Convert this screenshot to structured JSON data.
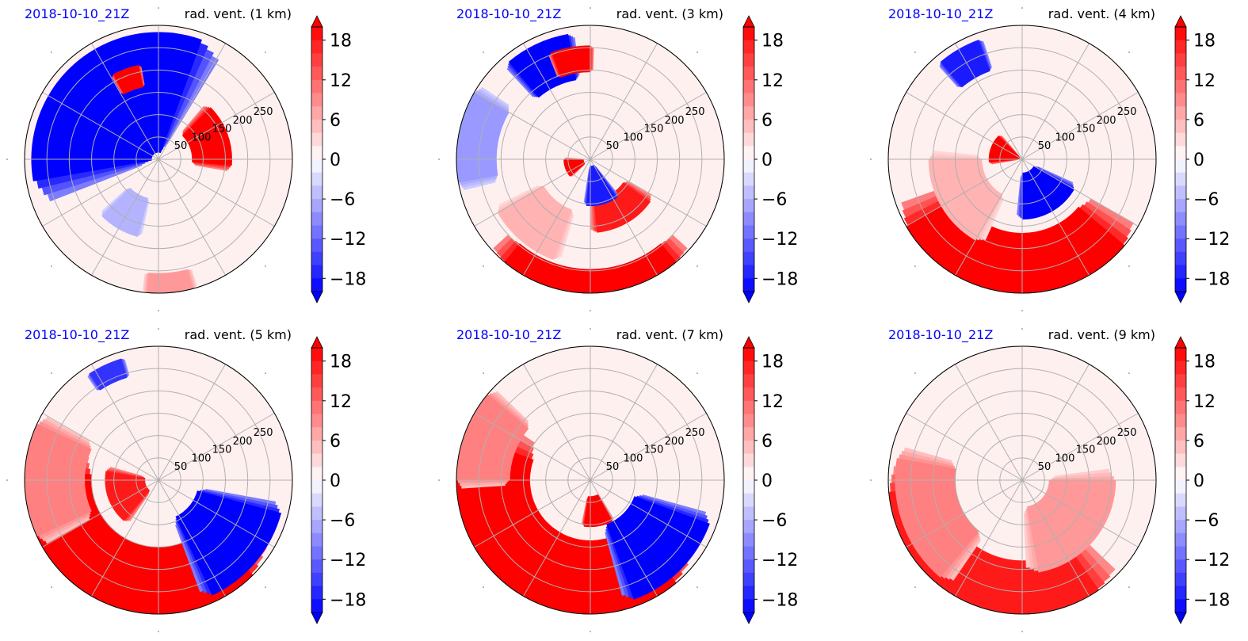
{
  "figure": {
    "panel_count": 6
  },
  "chart_data": [
    {
      "type": "heatmap",
      "projection": "polar",
      "date_label": "2018-10-10_21Z",
      "title": "rad. vent. (1 km)",
      "radial_ticks": [
        "50",
        "100",
        "150",
        "200",
        "250"
      ],
      "colorbar": {
        "ticks": [
          "18",
          "12",
          "6",
          "0",
          "−6",
          "−12",
          "−18"
        ],
        "range": [
          -20,
          20
        ],
        "extend": "both"
      },
      "grid": true,
      "features": [
        {
          "sign": "negative",
          "az": 130,
          "spread": 60,
          "r1": 0.05,
          "r2": 0.95,
          "intensity": 1.0
        },
        {
          "sign": "positive",
          "az": 20,
          "spread": 25,
          "r1": 0.25,
          "r2": 0.55,
          "intensity": 1.0
        },
        {
          "sign": "positive",
          "az": 110,
          "spread": 8,
          "r1": 0.55,
          "r2": 0.72,
          "intensity": 1.0
        },
        {
          "sign": "positive",
          "az": 275,
          "spread": 10,
          "r1": 0.85,
          "r2": 1.0,
          "intensity": 0.4
        },
        {
          "sign": "negative",
          "az": 240,
          "spread": 15,
          "r1": 0.3,
          "r2": 0.6,
          "intensity": 0.3
        }
      ]
    },
    {
      "type": "heatmap",
      "projection": "polar",
      "date_label": "2018-10-10_21Z",
      "title": "rad. vent. (3 km)",
      "radial_ticks": [
        "50",
        "100",
        "150",
        "200",
        "250"
      ],
      "colorbar": {
        "ticks": [
          "18",
          "12",
          "6",
          "0",
          "−6",
          "−12",
          "−18"
        ],
        "range": [
          -20,
          20
        ],
        "extend": "both"
      },
      "grid": true,
      "features": [
        {
          "sign": "positive",
          "az": 270,
          "spread": 40,
          "r1": 0.82,
          "r2": 1.0,
          "intensity": 1.0
        },
        {
          "sign": "positive",
          "az": 300,
          "spread": 25,
          "r1": 0.3,
          "r2": 0.55,
          "intensity": 0.9
        },
        {
          "sign": "negative",
          "az": 285,
          "spread": 20,
          "r1": 0.05,
          "r2": 0.35,
          "intensity": 0.9
        },
        {
          "sign": "positive",
          "az": 200,
          "spread": 20,
          "r1": 0.05,
          "r2": 0.2,
          "intensity": 1.0
        },
        {
          "sign": "negative",
          "az": 115,
          "spread": 15,
          "r1": 0.6,
          "r2": 0.95,
          "intensity": 1.0
        },
        {
          "sign": "positive",
          "az": 100,
          "spread": 10,
          "r1": 0.65,
          "r2": 0.85,
          "intensity": 1.0
        },
        {
          "sign": "negative",
          "az": 170,
          "spread": 20,
          "r1": 0.7,
          "r2": 1.0,
          "intensity": 0.4
        },
        {
          "sign": "positive",
          "az": 230,
          "spread": 20,
          "r1": 0.4,
          "r2": 0.8,
          "intensity": 0.3
        }
      ]
    },
    {
      "type": "heatmap",
      "projection": "polar",
      "date_label": "2018-10-10_21Z",
      "title": "rad. vent. (4 km)",
      "radial_ticks": [
        "50",
        "100",
        "150",
        "200",
        "250"
      ],
      "colorbar": {
        "ticks": [
          "18",
          "12",
          "6",
          "0",
          "−6",
          "−12",
          "−18"
        ],
        "range": [
          -20,
          20
        ],
        "extend": "both"
      },
      "grid": true,
      "features": [
        {
          "sign": "positive",
          "az": 265,
          "spread": 55,
          "r1": 0.55,
          "r2": 1.0,
          "intensity": 1.0
        },
        {
          "sign": "negative",
          "az": 300,
          "spread": 30,
          "r1": 0.1,
          "r2": 0.45,
          "intensity": 1.0
        },
        {
          "sign": "positive",
          "az": 160,
          "spread": 25,
          "r1": 0.02,
          "r2": 0.25,
          "intensity": 1.0
        },
        {
          "sign": "negative",
          "az": 120,
          "spread": 10,
          "r1": 0.7,
          "r2": 0.95,
          "intensity": 0.9
        },
        {
          "sign": "positive",
          "az": 210,
          "spread": 30,
          "r1": 0.3,
          "r2": 0.7,
          "intensity": 0.3
        }
      ]
    },
    {
      "type": "heatmap",
      "projection": "polar",
      "date_label": "2018-10-10_21Z",
      "title": "rad. vent. (5 km)",
      "radial_ticks": [
        "50",
        "100",
        "150",
        "200",
        "250"
      ],
      "colorbar": {
        "ticks": [
          "18",
          "12",
          "6",
          "0",
          "−6",
          "−12",
          "−18"
        ],
        "range": [
          -20,
          20
        ],
        "extend": "both"
      },
      "grid": true,
      "features": [
        {
          "sign": "positive",
          "az": 245,
          "spread": 70,
          "r1": 0.5,
          "r2": 1.0,
          "intensity": 1.0
        },
        {
          "sign": "negative",
          "az": 320,
          "spread": 25,
          "r1": 0.3,
          "r2": 0.95,
          "intensity": 1.0
        },
        {
          "sign": "positive",
          "az": 200,
          "spread": 30,
          "r1": 0.1,
          "r2": 0.4,
          "intensity": 0.9
        },
        {
          "sign": "negative",
          "az": 115,
          "spread": 8,
          "r1": 0.8,
          "r2": 0.95,
          "intensity": 0.8
        },
        {
          "sign": "positive",
          "az": 180,
          "spread": 25,
          "r1": 0.55,
          "r2": 1.0,
          "intensity": 0.5
        }
      ]
    },
    {
      "type": "heatmap",
      "projection": "polar",
      "date_label": "2018-10-10_21Z",
      "title": "rad. vent. (7 km)",
      "radial_ticks": [
        "50",
        "100",
        "150",
        "200",
        "250"
      ],
      "colorbar": {
        "ticks": [
          "18",
          "12",
          "6",
          "0",
          "−6",
          "−12",
          "−18"
        ],
        "range": [
          -20,
          20
        ],
        "extend": "both"
      },
      "grid": true,
      "features": [
        {
          "sign": "positive",
          "az": 235,
          "spread": 75,
          "r1": 0.45,
          "r2": 1.0,
          "intensity": 1.0
        },
        {
          "sign": "negative",
          "az": 315,
          "spread": 25,
          "r1": 0.35,
          "r2": 0.95,
          "intensity": 1.0
        },
        {
          "sign": "positive",
          "az": 280,
          "spread": 18,
          "r1": 0.12,
          "r2": 0.35,
          "intensity": 1.0
        },
        {
          "sign": "positive",
          "az": 160,
          "spread": 20,
          "r1": 0.6,
          "r2": 1.0,
          "intensity": 0.5
        }
      ]
    },
    {
      "type": "heatmap",
      "projection": "polar",
      "date_label": "2018-10-10_21Z",
      "title": "rad. vent. (9 km)",
      "radial_ticks": [
        "50",
        "100",
        "150",
        "200",
        "250"
      ],
      "colorbar": {
        "ticks": [
          "18",
          "12",
          "6",
          "0",
          "−6",
          "−12",
          "−18"
        ],
        "range": [
          -20,
          20
        ],
        "extend": "both"
      },
      "grid": true,
      "features": [
        {
          "sign": "positive",
          "az": 245,
          "spread": 60,
          "r1": 0.6,
          "r2": 1.0,
          "intensity": 0.9
        },
        {
          "sign": "positive",
          "az": 320,
          "spread": 40,
          "r1": 0.2,
          "r2": 0.7,
          "intensity": 0.4
        },
        {
          "sign": "positive",
          "az": 200,
          "spread": 30,
          "r1": 0.5,
          "r2": 0.95,
          "intensity": 0.5
        }
      ]
    }
  ],
  "colors": {
    "date_label": "#0000ff",
    "title": "#000000",
    "grid": "#b0b0b0",
    "positive_max": "#ff0000",
    "negative_max": "#0000ff",
    "neutral": "#ffffff"
  }
}
